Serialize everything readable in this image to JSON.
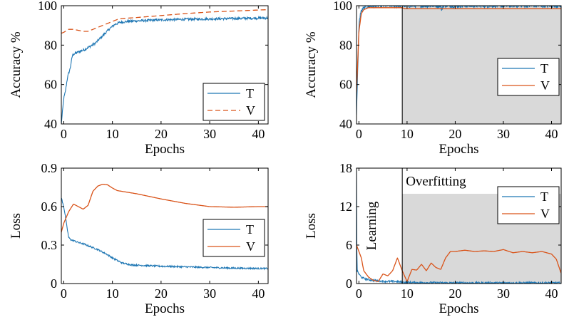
{
  "colors": {
    "train": "#1f77b4",
    "val": "#d95319",
    "shade": "#d9d9d9",
    "axis": "#000000"
  },
  "chart_data": [
    {
      "id": "acc-left",
      "type": "line",
      "xlabel": "Epochs",
      "ylabel": "Accuracy %",
      "xlim": [
        -0.5,
        42
      ],
      "ylim": [
        40,
        100
      ],
      "xticks": [
        0,
        10,
        20,
        30,
        40
      ],
      "yticks": [
        40,
        60,
        80,
        100
      ],
      "legend": {
        "position": "bottom-right",
        "entries": [
          "T",
          "V"
        ]
      },
      "series": [
        {
          "name": "T",
          "style": "solid",
          "color": "#1f77b4",
          "noise": 0.6,
          "x": [
            -0.5,
            0,
            0.3,
            0.8,
            1.3,
            1.8,
            2.5,
            3.5,
            4.5,
            5.5,
            6.5,
            7.5,
            8.5,
            9.5,
            10.5,
            11.5,
            13,
            15,
            20,
            25,
            30,
            35,
            40,
            42
          ],
          "y": [
            40,
            53,
            56,
            64,
            68,
            75,
            76,
            77,
            78,
            79.5,
            81,
            83.5,
            86,
            88.5,
            90.5,
            91.5,
            92,
            92.3,
            92.8,
            93.1,
            93.3,
            93.5,
            93.7,
            93.8
          ]
        },
        {
          "name": "V",
          "style": "dashed",
          "color": "#d95319",
          "noise": 0,
          "x": [
            -0.5,
            0,
            1,
            2,
            3,
            4,
            5,
            6,
            7,
            8,
            9,
            10,
            11,
            12,
            15,
            20,
            25,
            30,
            35,
            40,
            42
          ],
          "y": [
            86,
            86.5,
            88,
            88,
            87.5,
            87,
            87,
            88,
            89,
            90,
            91,
            92,
            93,
            93.5,
            94,
            95,
            96,
            96.8,
            97.3,
            97.8,
            98
          ]
        }
      ]
    },
    {
      "id": "acc-right",
      "type": "line",
      "xlabel": "Epochs",
      "ylabel": "Accuracy %",
      "xlim": [
        -0.5,
        42
      ],
      "ylim": [
        40,
        100
      ],
      "xticks": [
        0,
        10,
        20,
        30,
        40
      ],
      "yticks": [
        40,
        60,
        80,
        100
      ],
      "shade_from": 9,
      "divider_x": 9,
      "legend": {
        "position": "right",
        "entries": [
          "T",
          "V"
        ]
      },
      "series": [
        {
          "name": "T",
          "style": "solid",
          "color": "#1f77b4",
          "noise": 1.0,
          "x": [
            -0.5,
            0,
            0.3,
            0.7,
            1.2,
            2,
            3,
            5,
            9,
            17,
            17.2,
            17.4,
            25,
            42
          ],
          "y": [
            44,
            90,
            96,
            98,
            99,
            99.5,
            99.8,
            100,
            100,
            100,
            97,
            100,
            100,
            100
          ]
        },
        {
          "name": "V",
          "style": "solid",
          "color": "#d95319",
          "noise": 0,
          "x": [
            -0.5,
            0,
            0.5,
            1,
            1.5,
            2,
            4,
            9,
            9.5,
            12,
            15,
            18,
            21,
            25,
            30,
            35,
            40,
            42
          ],
          "y": [
            56,
            87,
            96,
            98,
            98.5,
            99,
            99,
            99,
            98.5,
            98.5,
            98.5,
            98.5,
            98.5,
            98.5,
            98.5,
            98.5,
            98.5,
            98.5
          ]
        }
      ]
    },
    {
      "id": "loss-left",
      "type": "line",
      "xlabel": "Epochs",
      "ylabel": "Loss",
      "xlim": [
        -0.5,
        42
      ],
      "ylim": [
        0,
        0.9
      ],
      "xticks": [
        0,
        10,
        20,
        30,
        40
      ],
      "yticks": [
        0,
        0.3,
        0.6,
        0.9
      ],
      "legend": {
        "position": "right",
        "entries": [
          "T",
          "V"
        ]
      },
      "series": [
        {
          "name": "T",
          "style": "solid",
          "color": "#1f77b4",
          "noise": 0.006,
          "x": [
            -0.5,
            0,
            0.5,
            1,
            1.5,
            2,
            3,
            4,
            5,
            6,
            7,
            8,
            9,
            10,
            11,
            12,
            14,
            20,
            25,
            30,
            35,
            40,
            42
          ],
          "y": [
            0.67,
            0.6,
            0.48,
            0.36,
            0.34,
            0.335,
            0.32,
            0.31,
            0.295,
            0.28,
            0.265,
            0.245,
            0.225,
            0.2,
            0.18,
            0.16,
            0.145,
            0.135,
            0.13,
            0.125,
            0.12,
            0.118,
            0.117
          ]
        },
        {
          "name": "V",
          "style": "solid",
          "color": "#d95319",
          "noise": 0,
          "x": [
            -0.5,
            0,
            1,
            2,
            3,
            4,
            5,
            6,
            7,
            8,
            9,
            10,
            11,
            15,
            20,
            25,
            30,
            35,
            40,
            42
          ],
          "y": [
            0.4,
            0.47,
            0.56,
            0.62,
            0.6,
            0.58,
            0.61,
            0.72,
            0.76,
            0.775,
            0.77,
            0.745,
            0.725,
            0.7,
            0.66,
            0.625,
            0.6,
            0.595,
            0.6,
            0.6
          ]
        }
      ]
    },
    {
      "id": "loss-right",
      "type": "line",
      "xlabel": "Epochs",
      "ylabel": "Loss",
      "xlim": [
        -0.5,
        42
      ],
      "ylim": [
        0,
        18
      ],
      "xticks": [
        0,
        10,
        20,
        30,
        40
      ],
      "yticks": [
        0,
        6,
        12,
        18
      ],
      "shade_from": 9,
      "shade_top": 14,
      "divider_x": 9,
      "annotations": [
        {
          "text": "Learning",
          "x": 3.5,
          "y": 9,
          "rotate": -90
        },
        {
          "text": "Overfitting",
          "x": 16,
          "y": 15.3,
          "rotate": 0
        }
      ],
      "legend": {
        "position": "right",
        "entries": [
          "T",
          "V"
        ]
      },
      "series": [
        {
          "name": "T",
          "style": "solid",
          "color": "#1f77b4",
          "noise": 0.15,
          "x": [
            -0.5,
            -0.4,
            0,
            0.5,
            1,
            2,
            3,
            5,
            8,
            9,
            12,
            20,
            30,
            40,
            42
          ],
          "y": [
            17.5,
            2,
            1.5,
            1.0,
            0.8,
            0.6,
            0.5,
            0.35,
            0.3,
            0.2,
            0.15,
            0.1,
            0.1,
            0.1,
            0.1
          ]
        },
        {
          "name": "V",
          "style": "solid",
          "color": "#d95319",
          "noise": 0,
          "x": [
            -0.5,
            0,
            0.5,
            1,
            2,
            3,
            4,
            5,
            6,
            7,
            8,
            9,
            10,
            11,
            12,
            13,
            14,
            15,
            16,
            17,
            18,
            19,
            20,
            22,
            24,
            26,
            28,
            30,
            32,
            34,
            36,
            38,
            40,
            41,
            42
          ],
          "y": [
            6,
            5,
            4,
            2,
            1,
            0.5,
            0.3,
            1.5,
            1.2,
            2,
            4,
            2,
            0.3,
            2.2,
            2.1,
            3,
            2,
            3.2,
            2.5,
            2.2,
            4,
            5,
            5,
            5.2,
            5,
            5.1,
            5,
            5.3,
            4.8,
            5,
            4.8,
            5,
            4.6,
            3.8,
            1.6
          ]
        }
      ]
    }
  ]
}
